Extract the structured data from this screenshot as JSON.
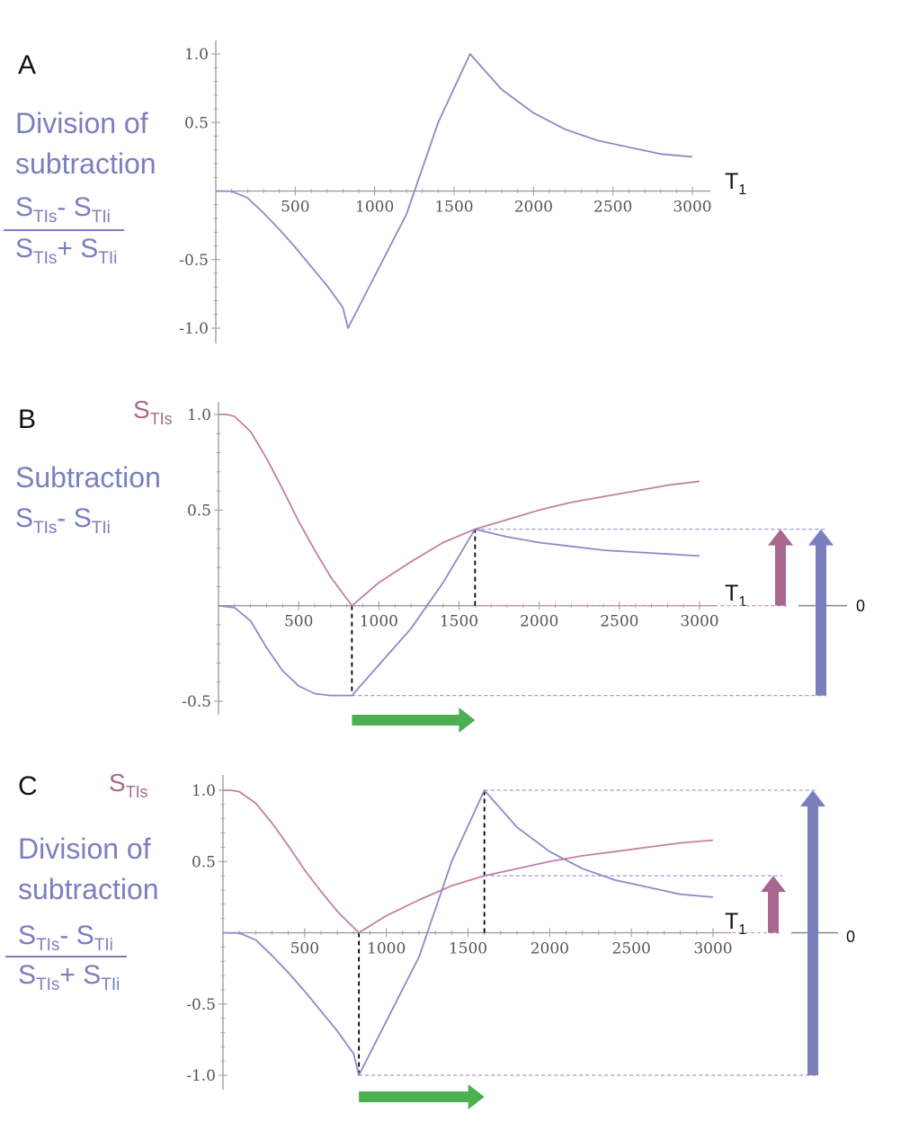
{
  "colors": {
    "division": "#8a8cc6",
    "sti_s": "#c27fa6",
    "axis": "#999999",
    "arrow_purple": "#7b7fbe",
    "arrow_magenta": "#a8678e",
    "arrow_green": "#4caf50",
    "dashed_guide": "#9a9ad8",
    "black_dashed": "#000000"
  },
  "panels": {
    "A": {
      "letter": "A",
      "side_title_1": "Division of",
      "side_title_2": "subtraction",
      "frac_num": "S",
      "frac_num_sub": "TIs",
      "frac_num_op": "- S",
      "frac_num_sub2": "TIi",
      "frac_den": "S",
      "frac_den_sub": "TIs",
      "frac_den_op": "+ S",
      "frac_den_sub2": "TIi",
      "axis_label": "T",
      "axis_label_sub": "1"
    },
    "B": {
      "letter": "B",
      "s_label": "S",
      "s_label_sub": "TIs",
      "side_title": "Subtraction",
      "sub_num": "S",
      "sub_num_sub": "TIs",
      "sub_num_op": "- S",
      "sub_num_sub2": "TIi",
      "axis_label": "T",
      "axis_label_sub": "1",
      "zero_label": "0"
    },
    "C": {
      "letter": "C",
      "s_label": "S",
      "s_label_sub": "TIs",
      "side_title_1": "Division of",
      "side_title_2": "subtraction",
      "frac_num": "S",
      "frac_num_sub": "TIs",
      "frac_num_op": "- S",
      "frac_num_sub2": "TIi",
      "frac_den": "S",
      "frac_den_sub": "TIs",
      "frac_den_op": "+ S",
      "frac_den_sub2": "TIi",
      "axis_label": "T",
      "axis_label_sub": "1",
      "zero_label": "0"
    }
  },
  "chart_data": [
    {
      "panel": "A",
      "type": "line",
      "xlim": [
        0,
        3000
      ],
      "ylim": [
        -1.0,
        1.0
      ],
      "x_ticks": [
        "500",
        "1000",
        "1500",
        "2000",
        "2500",
        "3000"
      ],
      "y_ticks": [
        "1.0",
        "0.5",
        "-0.5",
        "-1.0"
      ],
      "series": [
        {
          "color": "division",
          "x": [
            0,
            100,
            200,
            300,
            400,
            500,
            600,
            700,
            800,
            832,
            1000,
            1200,
            1400,
            1600,
            1800,
            2000,
            2200,
            2400,
            2600,
            2800,
            3000
          ],
          "y": [
            0,
            -0.002,
            -0.05,
            -0.16,
            -0.28,
            -0.41,
            -0.55,
            -0.69,
            -0.85,
            -1.0,
            -0.62,
            -0.17,
            0.5,
            1.0,
            0.74,
            0.57,
            0.45,
            0.37,
            0.32,
            0.27,
            0.25
          ]
        }
      ]
    },
    {
      "panel": "B",
      "type": "line",
      "xlim": [
        0,
        3000
      ],
      "ylim": [
        -0.5,
        1.0
      ],
      "x_ticks": [
        "500",
        "1000",
        "1500",
        "2000",
        "2500",
        "3000"
      ],
      "y_ticks": [
        "1.0",
        "0.5",
        "-0.5"
      ],
      "series": [
        {
          "color": "sti_s",
          "x": [
            0,
            50,
            100,
            200,
            300,
            400,
            500,
            600,
            700,
            832,
            1000,
            1200,
            1400,
            1600,
            1800,
            2000,
            2200,
            2400,
            2600,
            2800,
            3000
          ],
          "y": [
            1.0,
            1.0,
            0.99,
            0.91,
            0.77,
            0.61,
            0.44,
            0.29,
            0.15,
            0.0,
            0.12,
            0.23,
            0.33,
            0.4,
            0.45,
            0.5,
            0.54,
            0.57,
            0.6,
            0.63,
            0.65
          ]
        },
        {
          "color": "division",
          "x": [
            0,
            100,
            200,
            300,
            400,
            500,
            600,
            700,
            832,
            1000,
            1200,
            1400,
            1600,
            1800,
            2000,
            2200,
            2400,
            2600,
            2800,
            3000
          ],
          "y": [
            0,
            -0.01,
            -0.08,
            -0.22,
            -0.34,
            -0.42,
            -0.46,
            -0.47,
            -0.47,
            -0.31,
            -0.12,
            0.12,
            0.4,
            0.36,
            0.33,
            0.31,
            0.29,
            0.28,
            0.27,
            0.26
          ]
        }
      ],
      "annotations": {
        "key_x": [
          832,
          1600
        ],
        "level_high": 0.4,
        "level_low": -0.47
      }
    },
    {
      "panel": "C",
      "type": "line",
      "xlim": [
        0,
        3000
      ],
      "ylim": [
        -1.0,
        1.0
      ],
      "x_ticks": [
        "500",
        "1000",
        "1500",
        "2000",
        "2500",
        "3000"
      ],
      "y_ticks": [
        "1.0",
        "0.5",
        "-0.5",
        "-1.0"
      ],
      "series": [
        {
          "color": "sti_s",
          "x": [
            0,
            50,
            100,
            200,
            300,
            400,
            500,
            600,
            700,
            832,
            1000,
            1200,
            1400,
            1600,
            1800,
            2000,
            2200,
            2400,
            2600,
            2800,
            3000
          ],
          "y": [
            1.0,
            1.0,
            0.99,
            0.91,
            0.77,
            0.61,
            0.44,
            0.29,
            0.15,
            0.0,
            0.12,
            0.23,
            0.33,
            0.4,
            0.45,
            0.5,
            0.54,
            0.57,
            0.6,
            0.63,
            0.65
          ]
        },
        {
          "color": "division",
          "x": [
            0,
            100,
            200,
            300,
            400,
            500,
            600,
            700,
            800,
            832,
            1000,
            1200,
            1400,
            1600,
            1800,
            2000,
            2200,
            2400,
            2600,
            2800,
            3000
          ],
          "y": [
            0,
            -0.002,
            -0.05,
            -0.16,
            -0.28,
            -0.41,
            -0.55,
            -0.69,
            -0.85,
            -1.0,
            -0.62,
            -0.17,
            0.5,
            1.0,
            0.74,
            0.57,
            0.45,
            0.37,
            0.32,
            0.27,
            0.25
          ]
        }
      ],
      "annotations": {
        "key_x": [
          832,
          1600
        ],
        "level_high": 1.0,
        "level_low": -1.0,
        "level_sti": 0.4
      }
    }
  ]
}
